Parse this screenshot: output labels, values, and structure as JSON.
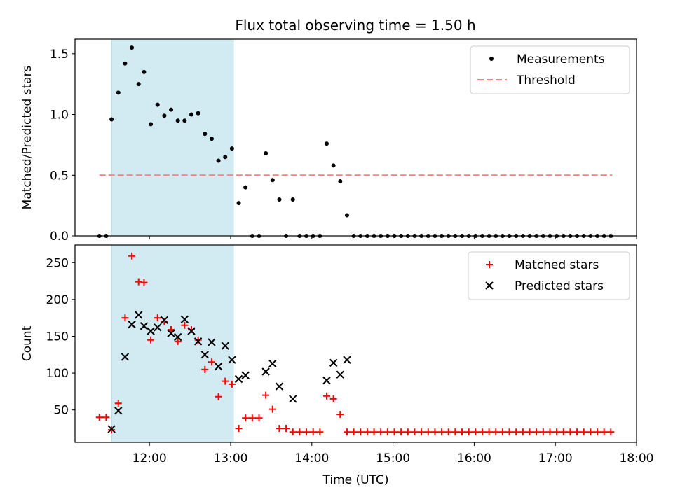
{
  "title": "Flux total observing time = 1.50 h",
  "colors": {
    "highlight": "#add8e6",
    "threshold": "#ff7f7f",
    "matched": "#ff0000",
    "predicted": "#000000",
    "measurements": "#000000"
  },
  "chart_data": [
    {
      "type": "scatter",
      "ylabel": "Matched/Predicted stars",
      "xlim": [
        "11:05",
        "18:00"
      ],
      "ylim": [
        0,
        1.62
      ],
      "yticks": [
        0.0,
        0.5,
        1.0,
        1.5
      ],
      "ytick_labels": [
        "0.0",
        "0.5",
        "1.0",
        "1.5"
      ],
      "highlight_span": [
        "11:32",
        "13:02"
      ],
      "legend": {
        "placement": "upper right",
        "entries": [
          "Measurements",
          "Threshold"
        ]
      },
      "threshold": {
        "name": "Threshold",
        "y": 0.5,
        "x_range": [
          "11:23",
          "17:42"
        ]
      },
      "series": [
        {
          "name": "Measurements",
          "marker": "dot",
          "points": [
            [
              "11:23",
              0.0
            ],
            [
              "11:28",
              0.0
            ],
            [
              "11:32",
              0.96
            ],
            [
              "11:37",
              1.18
            ],
            [
              "11:42",
              1.42
            ],
            [
              "11:47",
              1.55
            ],
            [
              "11:52",
              1.25
            ],
            [
              "11:56",
              1.35
            ],
            [
              "12:01",
              0.92
            ],
            [
              "12:06",
              1.08
            ],
            [
              "12:11",
              0.99
            ],
            [
              "12:16",
              1.04
            ],
            [
              "12:21",
              0.95
            ],
            [
              "12:26",
              0.95
            ],
            [
              "12:31",
              1.0
            ],
            [
              "12:36",
              1.01
            ],
            [
              "12:41",
              0.84
            ],
            [
              "12:46",
              0.8
            ],
            [
              "12:51",
              0.62
            ],
            [
              "12:56",
              0.65
            ],
            [
              "13:01",
              0.72
            ],
            [
              "13:06",
              0.27
            ],
            [
              "13:11",
              0.4
            ],
            [
              "13:16",
              0.0
            ],
            [
              "13:21",
              0.0
            ],
            [
              "13:26",
              0.68
            ],
            [
              "13:31",
              0.46
            ],
            [
              "13:36",
              0.3
            ],
            [
              "13:41",
              0.0
            ],
            [
              "13:46",
              0.3
            ],
            [
              "13:51",
              0.0
            ],
            [
              "13:56",
              0.0
            ],
            [
              "14:01",
              0.0
            ],
            [
              "14:06",
              0.0
            ],
            [
              "14:11",
              0.76
            ],
            [
              "14:16",
              0.58
            ],
            [
              "14:21",
              0.45
            ],
            [
              "14:26",
              0.17
            ],
            [
              "14:31",
              0.0
            ],
            [
              "14:36",
              0.0
            ],
            [
              "14:41",
              0.0
            ],
            [
              "14:46",
              0.0
            ],
            [
              "14:51",
              0.0
            ],
            [
              "14:56",
              0.0
            ],
            [
              "15:01",
              0.0
            ],
            [
              "15:06",
              0.0
            ],
            [
              "15:11",
              0.0
            ],
            [
              "15:16",
              0.0
            ],
            [
              "15:21",
              0.0
            ],
            [
              "15:26",
              0.0
            ],
            [
              "15:31",
              0.0
            ],
            [
              "15:36",
              0.0
            ],
            [
              "15:41",
              0.0
            ],
            [
              "15:46",
              0.0
            ],
            [
              "15:51",
              0.0
            ],
            [
              "15:56",
              0.0
            ],
            [
              "16:01",
              0.0
            ],
            [
              "16:06",
              0.0
            ],
            [
              "16:11",
              0.0
            ],
            [
              "16:16",
              0.0
            ],
            [
              "16:21",
              0.0
            ],
            [
              "16:26",
              0.0
            ],
            [
              "16:31",
              0.0
            ],
            [
              "16:36",
              0.0
            ],
            [
              "16:41",
              0.0
            ],
            [
              "16:46",
              0.0
            ],
            [
              "16:51",
              0.0
            ],
            [
              "16:56",
              0.0
            ],
            [
              "17:01",
              0.0
            ],
            [
              "17:06",
              0.0
            ],
            [
              "17:11",
              0.0
            ],
            [
              "17:16",
              0.0
            ],
            [
              "17:21",
              0.0
            ],
            [
              "17:26",
              0.0
            ],
            [
              "17:31",
              0.0
            ],
            [
              "17:36",
              0.0
            ],
            [
              "17:41",
              0.0
            ]
          ]
        }
      ]
    },
    {
      "type": "scatter",
      "ylabel": "Count",
      "xlabel": "Time (UTC)",
      "xlim": [
        "11:05",
        "18:00"
      ],
      "ylim": [
        6,
        274
      ],
      "yticks": [
        50,
        100,
        150,
        200,
        250
      ],
      "ytick_labels": [
        "50",
        "100",
        "150",
        "200",
        "250"
      ],
      "xticks": [
        "12:00",
        "13:00",
        "14:00",
        "15:00",
        "16:00",
        "17:00",
        "18:00"
      ],
      "xtick_labels": [
        "12:00",
        "13:00",
        "14:00",
        "15:00",
        "16:00",
        "17:00",
        "18:00"
      ],
      "highlight_span": [
        "11:32",
        "13:02"
      ],
      "legend": {
        "placement": "upper right",
        "entries": [
          "Matched stars",
          "Predicted stars"
        ]
      },
      "series": [
        {
          "name": "Matched stars",
          "marker": "plus",
          "points": [
            [
              "11:23",
              40
            ],
            [
              "11:28",
              40
            ],
            [
              "11:32",
              23
            ],
            [
              "11:37",
              59
            ],
            [
              "11:42",
              175
            ],
            [
              "11:47",
              259
            ],
            [
              "11:52",
              224
            ],
            [
              "11:56",
              223
            ],
            [
              "12:01",
              145
            ],
            [
              "12:06",
              175
            ],
            [
              "12:11",
              170
            ],
            [
              "12:16",
              159
            ],
            [
              "12:21",
              143
            ],
            [
              "12:26",
              165
            ],
            [
              "12:31",
              159
            ],
            [
              "12:36",
              145
            ],
            [
              "12:41",
              105
            ],
            [
              "12:46",
              115
            ],
            [
              "12:51",
              68
            ],
            [
              "12:56",
              89
            ],
            [
              "13:01",
              85
            ],
            [
              "13:06",
              25
            ],
            [
              "13:11",
              39
            ],
            [
              "13:16",
              39
            ],
            [
              "13:21",
              39
            ],
            [
              "13:26",
              70
            ],
            [
              "13:31",
              51
            ],
            [
              "13:36",
              25
            ],
            [
              "13:41",
              25
            ],
            [
              "13:46",
              20
            ],
            [
              "13:51",
              20
            ],
            [
              "13:56",
              20
            ],
            [
              "14:01",
              20
            ],
            [
              "14:06",
              20
            ],
            [
              "14:11",
              69
            ],
            [
              "14:16",
              65
            ],
            [
              "14:21",
              44
            ],
            [
              "14:26",
              20
            ],
            [
              "14:31",
              20
            ],
            [
              "14:36",
              20
            ],
            [
              "14:41",
              20
            ],
            [
              "14:46",
              20
            ],
            [
              "14:51",
              20
            ],
            [
              "14:56",
              20
            ],
            [
              "15:01",
              20
            ],
            [
              "15:06",
              20
            ],
            [
              "15:11",
              20
            ],
            [
              "15:16",
              20
            ],
            [
              "15:21",
              20
            ],
            [
              "15:26",
              20
            ],
            [
              "15:31",
              20
            ],
            [
              "15:36",
              20
            ],
            [
              "15:41",
              20
            ],
            [
              "15:46",
              20
            ],
            [
              "15:51",
              20
            ],
            [
              "15:56",
              20
            ],
            [
              "16:01",
              20
            ],
            [
              "16:06",
              20
            ],
            [
              "16:11",
              20
            ],
            [
              "16:16",
              20
            ],
            [
              "16:21",
              20
            ],
            [
              "16:26",
              20
            ],
            [
              "16:31",
              20
            ],
            [
              "16:36",
              20
            ],
            [
              "16:41",
              20
            ],
            [
              "16:46",
              20
            ],
            [
              "16:51",
              20
            ],
            [
              "16:56",
              20
            ],
            [
              "17:01",
              20
            ],
            [
              "17:06",
              20
            ],
            [
              "17:11",
              20
            ],
            [
              "17:16",
              20
            ],
            [
              "17:21",
              20
            ],
            [
              "17:26",
              20
            ],
            [
              "17:31",
              20
            ],
            [
              "17:36",
              20
            ],
            [
              "17:41",
              20
            ]
          ]
        },
        {
          "name": "Predicted stars",
          "marker": "x",
          "points": [
            [
              "11:32",
              24
            ],
            [
              "11:37",
              49
            ],
            [
              "11:42",
              122
            ],
            [
              "11:47",
              166
            ],
            [
              "11:52",
              179
            ],
            [
              "11:56",
              164
            ],
            [
              "12:01",
              157
            ],
            [
              "12:06",
              162
            ],
            [
              "12:11",
              172
            ],
            [
              "12:16",
              154
            ],
            [
              "12:21",
              149
            ],
            [
              "12:26",
              173
            ],
            [
              "12:31",
              157
            ],
            [
              "12:36",
              143
            ],
            [
              "12:41",
              125
            ],
            [
              "12:46",
              142
            ],
            [
              "12:51",
              109
            ],
            [
              "12:56",
              137
            ],
            [
              "13:01",
              118
            ],
            [
              "13:06",
              92
            ],
            [
              "13:11",
              97
            ],
            [
              "13:26",
              102
            ],
            [
              "13:31",
              113
            ],
            [
              "13:36",
              82
            ],
            [
              "13:46",
              65
            ],
            [
              "14:11",
              90
            ],
            [
              "14:16",
              114
            ],
            [
              "14:21",
              98
            ],
            [
              "14:26",
              118
            ]
          ]
        }
      ]
    }
  ]
}
